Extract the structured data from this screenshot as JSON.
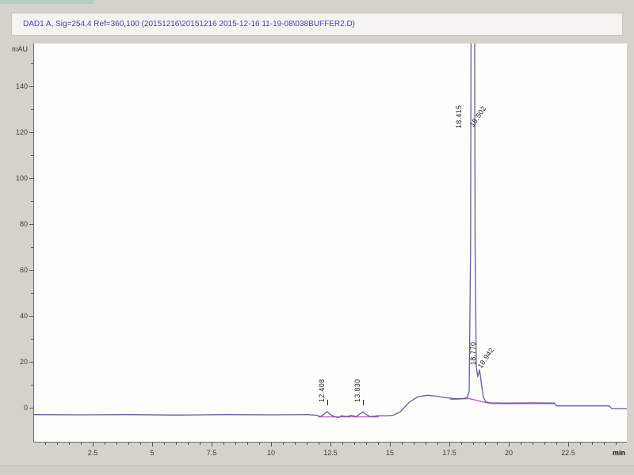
{
  "window": {
    "background": "#d5d2cb"
  },
  "chart_data": {
    "type": "line",
    "title": "DAD1 A, Sig=254,4 Ref=360,100 (20151216\\20151216 2015-12-16 11-19-08\\038BUFFER2.D)",
    "xlabel": "min",
    "ylabel": "mAU",
    "xlim": [
      0,
      25
    ],
    "ylim": [
      -6,
      158
    ],
    "x_ticks": [
      2.5,
      5,
      7.5,
      10,
      12.5,
      15,
      17.5,
      20,
      22.5
    ],
    "x_minor_step": 0.5,
    "y_ticks": [
      0,
      20,
      40,
      60,
      80,
      100,
      120,
      140
    ],
    "y_minor_step": 10,
    "grid": false,
    "legend": false,
    "trace_color": "#5f5f9f",
    "integration_color": "#c45fc4",
    "series": [
      {
        "name": "DAD1 A",
        "points": [
          [
            0,
            -3.0
          ],
          [
            2,
            -3.1
          ],
          [
            4,
            -3.0
          ],
          [
            6,
            -3.2
          ],
          [
            8,
            -3.0
          ],
          [
            10,
            -3.1
          ],
          [
            11.5,
            -3.0
          ],
          [
            11.9,
            -3.3
          ],
          [
            12.05,
            -3.9
          ],
          [
            12.2,
            -2.8
          ],
          [
            12.32,
            -1.7
          ],
          [
            12.45,
            -2.9
          ],
          [
            12.6,
            -3.7
          ],
          [
            12.78,
            -4.3
          ],
          [
            12.95,
            -3.5
          ],
          [
            13.15,
            -3.9
          ],
          [
            13.35,
            -3.3
          ],
          [
            13.55,
            -3.9
          ],
          [
            13.72,
            -2.6
          ],
          [
            13.84,
            -1.8
          ],
          [
            13.97,
            -3.0
          ],
          [
            14.15,
            -3.9
          ],
          [
            14.45,
            -3.5
          ],
          [
            14.8,
            -3.5
          ],
          [
            15.1,
            -3.3
          ],
          [
            15.4,
            -1.8
          ],
          [
            15.8,
            2.6
          ],
          [
            16.15,
            4.8
          ],
          [
            16.55,
            5.4
          ],
          [
            16.95,
            5.0
          ],
          [
            17.35,
            4.3
          ],
          [
            17.75,
            3.9
          ],
          [
            18.05,
            4.0
          ],
          [
            18.22,
            4.4
          ],
          [
            18.3,
            7
          ],
          [
            18.36,
            70
          ],
          [
            18.41,
            320
          ],
          [
            18.5,
            320
          ],
          [
            18.55,
            70
          ],
          [
            18.6,
            18
          ],
          [
            18.66,
            13.5
          ],
          [
            18.74,
            16.5
          ],
          [
            18.82,
            10
          ],
          [
            18.9,
            4.5
          ],
          [
            19.0,
            2.6
          ],
          [
            19.2,
            2.1
          ],
          [
            20.0,
            2.0
          ],
          [
            21.0,
            2.1
          ],
          [
            21.9,
            2.0
          ],
          [
            21.97,
            0.8
          ],
          [
            23.0,
            0.8
          ],
          [
            24.2,
            0.8
          ],
          [
            24.3,
            -0.5
          ],
          [
            25.0,
            -0.5
          ]
        ]
      }
    ],
    "integration_segments": [
      [
        [
          11.95,
          -4.0
        ],
        [
          14.5,
          -4.0
        ]
      ],
      [
        [
          17.5,
          3.6
        ],
        [
          18.3,
          4.0
        ],
        [
          19.0,
          2.2
        ],
        [
          19.3,
          1.8
        ]
      ],
      [
        [
          19.3,
          1.8
        ],
        [
          21.9,
          1.8
        ]
      ]
    ],
    "peak_start_ticks": [
      {
        "t": 12.35,
        "mau": 1.0
      },
      {
        "t": 13.85,
        "mau": 1.0
      }
    ],
    "peaks": [
      {
        "label": "12.408",
        "t": 12.3,
        "mau": 2.8,
        "angle": -90
      },
      {
        "label": "13.830",
        "t": 13.8,
        "mau": 2.8,
        "angle": -90
      },
      {
        "label": "18.415",
        "t": 18.06,
        "mau": 122,
        "angle": -90
      },
      {
        "label": "18.502",
        "t": 18.56,
        "mau": 122,
        "angle": -56
      },
      {
        "label": "18.770",
        "t": 18.66,
        "mau": 19,
        "angle": -90
      },
      {
        "label": "18.942",
        "t": 18.9,
        "mau": 17,
        "angle": -56
      }
    ]
  }
}
